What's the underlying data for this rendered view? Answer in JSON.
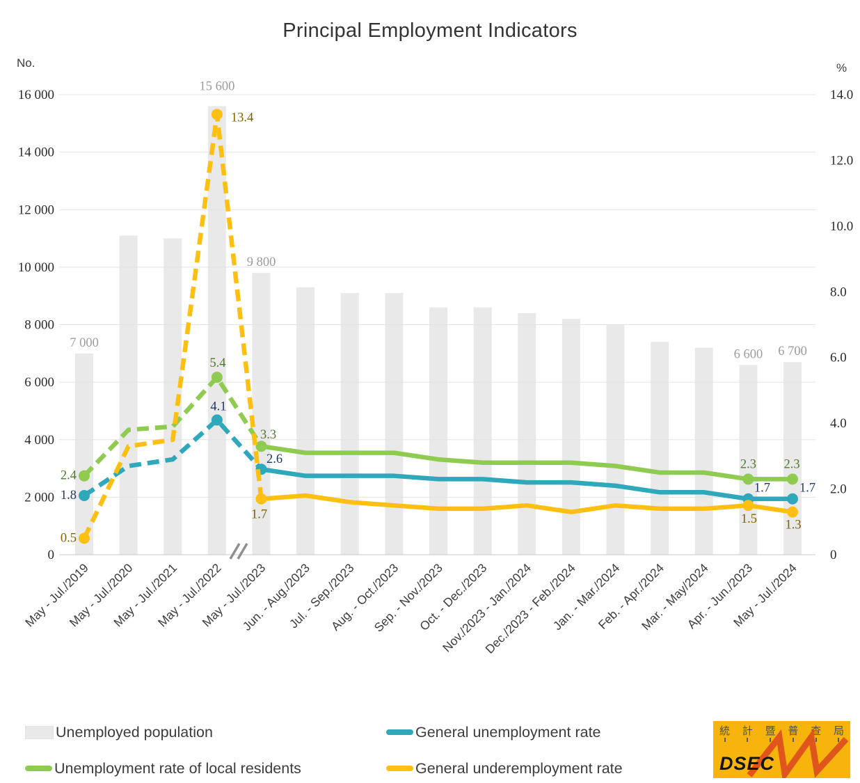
{
  "title": "Principal Employment Indicators",
  "left_axis": {
    "unit": "No.",
    "ticks": [
      "16 000",
      "14 000",
      "12 000",
      "10 000",
      "8 000",
      "6 000",
      "4 000",
      "2 000",
      "0"
    ],
    "tick_values": [
      16000,
      14000,
      12000,
      10000,
      8000,
      6000,
      4000,
      2000,
      0
    ],
    "max": 16000,
    "min": 0
  },
  "right_axis": {
    "unit": "%",
    "ticks": [
      "14.0",
      "12.0",
      "10.0",
      "8.0",
      "6.0",
      "4.0",
      "2.0",
      "0"
    ],
    "tick_values": [
      14,
      12,
      10,
      8,
      6,
      4,
      2,
      0
    ],
    "max": 14,
    "min": 0
  },
  "chart_data": {
    "type": "bar+line combo",
    "grid": true,
    "legend_position": "bottom",
    "axis_break_between": [
      "May - Jul./2022",
      "May - Jul./2023"
    ],
    "categories": [
      "May - Jul./2019",
      "May - Jul./2020",
      "May - Jul./2021",
      "May - Jul./2022",
      "May - Jul./2023",
      "Jun. - Aug./2023",
      "Jul. - Sep./2023",
      "Aug. - Oct./2023",
      "Sep. - Nov./2023",
      "Oct. - Dec./2023",
      "Nov./2023 - Jan./2024",
      "Dec./2023 - Feb./2024",
      "Jan. - Mar./2024",
      "Feb. - Apr./2024",
      "Mar. - May/2024",
      "Apr. - Jun./2023",
      "May - Jul./2024"
    ],
    "series": [
      {
        "name": "Unemployed population",
        "type": "bar",
        "axis": "left",
        "color": "#E9E9E9",
        "label_color": "#9C9C9C",
        "values": [
          7000,
          11100,
          11000,
          15600,
          9800,
          9300,
          9100,
          9100,
          8600,
          8600,
          8400,
          8200,
          8000,
          7400,
          7200,
          6600,
          6700
        ],
        "point_labels": {
          "0": "7 000",
          "3": "15 600",
          "4": "9 800",
          "15": "6 600",
          "16": "6 700"
        }
      },
      {
        "name": "General unemployment rate",
        "type": "line",
        "axis": "right",
        "color": "#2FA8BC",
        "label_color": "#1F3864",
        "values": [
          1.8,
          2.7,
          2.9,
          4.1,
          2.6,
          2.4,
          2.4,
          2.4,
          2.3,
          2.3,
          2.2,
          2.2,
          2.1,
          1.9,
          1.9,
          1.7,
          1.7
        ],
        "point_labels": {
          "0": "1.8",
          "3": "4.1",
          "4": "2.6",
          "15": "1.7",
          "16": "1.7"
        }
      },
      {
        "name": "Unemployment rate of local residents",
        "type": "line",
        "axis": "right",
        "color": "#8FCB50",
        "label_color": "#4E7A28",
        "values": [
          2.4,
          3.8,
          3.9,
          5.4,
          3.3,
          3.1,
          3.1,
          3.1,
          2.9,
          2.8,
          2.8,
          2.8,
          2.7,
          2.5,
          2.5,
          2.3,
          2.3
        ],
        "point_labels": {
          "0": "2.4",
          "3": "5.4",
          "4": "3.3",
          "15": "2.3",
          "16": "2.3"
        }
      },
      {
        "name": "General underemployment rate",
        "type": "line",
        "axis": "right",
        "color": "#FDC012",
        "label_color": "#7F6000",
        "values": [
          0.5,
          3.3,
          3.5,
          13.4,
          1.7,
          1.8,
          1.6,
          1.5,
          1.4,
          1.4,
          1.5,
          1.3,
          1.5,
          1.4,
          1.4,
          1.5,
          1.3
        ],
        "point_labels": {
          "0": "0.5",
          "3": "13.4",
          "4": "1.7",
          "15": "1.5",
          "16": "1.3"
        }
      }
    ],
    "dashed_until_index": 4,
    "marked_point_indices": [
      0,
      3,
      4,
      15,
      16
    ]
  },
  "legend": {
    "items": [
      {
        "label": "Unemployed population",
        "kind": "bar",
        "color": "#E9E9E9"
      },
      {
        "label": "General unemployment rate",
        "kind": "line",
        "color": "#2FA8BC"
      },
      {
        "label": "Unemployment rate of local residents",
        "kind": "line",
        "color": "#8FCB50"
      },
      {
        "label": "General underemployment rate",
        "kind": "line",
        "color": "#FDC012"
      }
    ]
  },
  "logo": {
    "cjk": "統計暨普查局",
    "latin": "DSEC",
    "bg_color": "#F6B40D",
    "zigzag_color": "#E0551B"
  }
}
